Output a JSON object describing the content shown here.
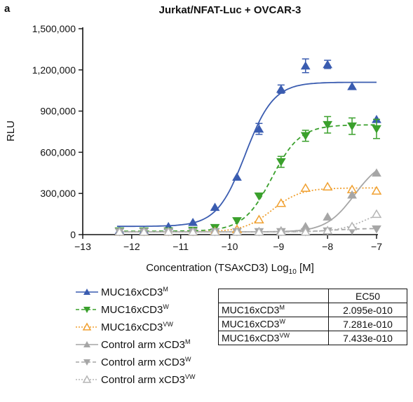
{
  "panel_letter": "a",
  "chart_data": {
    "type": "scatter",
    "title": "Jurkat/NFAT-Luc + OVCAR-3",
    "xlabel": "Concentration (TSAxCD3) Log",
    "xlabel_sub": "10",
    "xlabel_unit": "[M]",
    "ylabel": "RLU",
    "xlim": [
      -13,
      -7
    ],
    "ylim": [
      0,
      1500000
    ],
    "x_ticks": [
      "−13",
      "−12",
      "−11",
      "−10",
      "−9",
      "−8",
      "−7"
    ],
    "y_ticks": [
      "0",
      "300,000",
      "600,000",
      "900,000",
      "1,200,000",
      "1,500,000"
    ],
    "grid": false,
    "legend_position": "bottom-left",
    "series": [
      {
        "name": "MUC16xCD3",
        "sup": "M",
        "color": "#3a5cb0",
        "marker": "triangle-up",
        "filled": true,
        "line": "solid",
        "x": [
          -12.25,
          -11.75,
          -11.25,
          -10.75,
          -10.3,
          -9.85,
          -9.4,
          -8.95,
          -8.45,
          -8.0,
          -7.5,
          -7.0
        ],
        "y": [
          30000,
          30000,
          60000,
          90000,
          200000,
          420000,
          770000,
          1060000,
          1230000,
          1240000,
          1080000,
          840000
        ],
        "err": [
          0,
          0,
          0,
          0,
          0,
          0,
          40000,
          30000,
          50000,
          30000,
          0,
          0
        ],
        "fit": {
          "bottom": 60000,
          "top": 1110000,
          "log_ec50": -9.68,
          "hill": 1.5
        }
      },
      {
        "name": "MUC16xCD3",
        "sup": "W",
        "color": "#3aa02c",
        "marker": "triangle-down",
        "filled": true,
        "line": "dashed",
        "x": [
          -12.25,
          -11.75,
          -11.25,
          -10.75,
          -10.3,
          -9.85,
          -9.4,
          -8.95,
          -8.45,
          -8.0,
          -7.5,
          -7.0
        ],
        "y": [
          25000,
          25000,
          25000,
          30000,
          50000,
          100000,
          280000,
          530000,
          720000,
          800000,
          790000,
          770000
        ],
        "err": [
          0,
          0,
          0,
          0,
          0,
          0,
          0,
          40000,
          40000,
          60000,
          60000,
          70000
        ],
        "fit": {
          "bottom": 25000,
          "top": 800000,
          "log_ec50": -9.14,
          "hill": 1.5
        }
      },
      {
        "name": "MUC16xCD3",
        "sup": "VW",
        "color": "#f0a030",
        "marker": "triangle-up",
        "filled": false,
        "line": "dotted",
        "x": [
          -12.25,
          -11.75,
          -11.25,
          -10.75,
          -10.3,
          -9.85,
          -9.4,
          -8.95,
          -8.45,
          -8.0,
          -7.5,
          -7.0
        ],
        "y": [
          20000,
          20000,
          20000,
          20000,
          25000,
          40000,
          110000,
          230000,
          340000,
          350000,
          330000,
          320000
        ],
        "err": [
          0,
          0,
          0,
          0,
          0,
          0,
          0,
          0,
          0,
          0,
          0,
          0
        ],
        "fit": {
          "bottom": 20000,
          "top": 340000,
          "log_ec50": -9.13,
          "hill": 1.5
        }
      },
      {
        "name": "Control arm xCD3",
        "sup": "M",
        "color": "#a6a6a6",
        "marker": "triangle-up",
        "filled": true,
        "line": "solid",
        "x": [
          -12.25,
          -11.75,
          -11.25,
          -10.75,
          -10.3,
          -9.85,
          -9.4,
          -8.95,
          -8.45,
          -8.0,
          -7.5,
          -7.0
        ],
        "y": [
          20000,
          20000,
          20000,
          20000,
          20000,
          20000,
          25000,
          30000,
          60000,
          130000,
          290000,
          450000
        ],
        "err": [
          0,
          0,
          0,
          0,
          0,
          0,
          0,
          0,
          0,
          0,
          0,
          0
        ],
        "fit": {
          "bottom": 20000,
          "top": 560000,
          "log_ec50": -7.45,
          "hill": 1.5
        }
      },
      {
        "name": "Control arm xCD3",
        "sup": "W",
        "color": "#a6a6a6",
        "marker": "triangle-down",
        "filled": true,
        "line": "dashed",
        "x": [
          -12.25,
          -11.75,
          -11.25,
          -10.75,
          -10.3,
          -9.85,
          -9.4,
          -8.95,
          -8.45,
          -8.0,
          -7.5,
          -7.0
        ],
        "y": [
          20000,
          20000,
          20000,
          20000,
          20000,
          20000,
          20000,
          20000,
          20000,
          25000,
          30000,
          40000
        ],
        "err": [
          0,
          0,
          0,
          0,
          0,
          0,
          0,
          0,
          0,
          0,
          0,
          0
        ],
        "fit": {
          "bottom": 20000,
          "top": 45000,
          "log_ec50": -7.9,
          "hill": 1.5
        }
      },
      {
        "name": "Control arm xCD3",
        "sup": "VW",
        "color": "#b5b5b5",
        "marker": "triangle-up",
        "filled": false,
        "line": "dotted",
        "x": [
          -12.25,
          -11.75,
          -11.25,
          -10.75,
          -10.3,
          -9.85,
          -9.4,
          -8.95,
          -8.45,
          -8.0,
          -7.5,
          -7.0
        ],
        "y": [
          20000,
          20000,
          20000,
          20000,
          20000,
          20000,
          20000,
          20000,
          20000,
          30000,
          60000,
          150000
        ],
        "err": [
          0,
          0,
          0,
          0,
          0,
          0,
          0,
          0,
          0,
          0,
          0,
          0
        ],
        "fit": {
          "bottom": 20000,
          "top": 200000,
          "log_ec50": -7.2,
          "hill": 1.5
        }
      }
    ]
  },
  "ec50_table": {
    "header": "EC50",
    "rows": [
      {
        "name": "MUC16xCD3",
        "sup": "M",
        "value": "2.095e-010"
      },
      {
        "name": "MUC16xCD3",
        "sup": "W",
        "value": "7.281e-010"
      },
      {
        "name": "MUC16xCD3",
        "sup": "VW",
        "value": "7.433e-010"
      }
    ]
  }
}
